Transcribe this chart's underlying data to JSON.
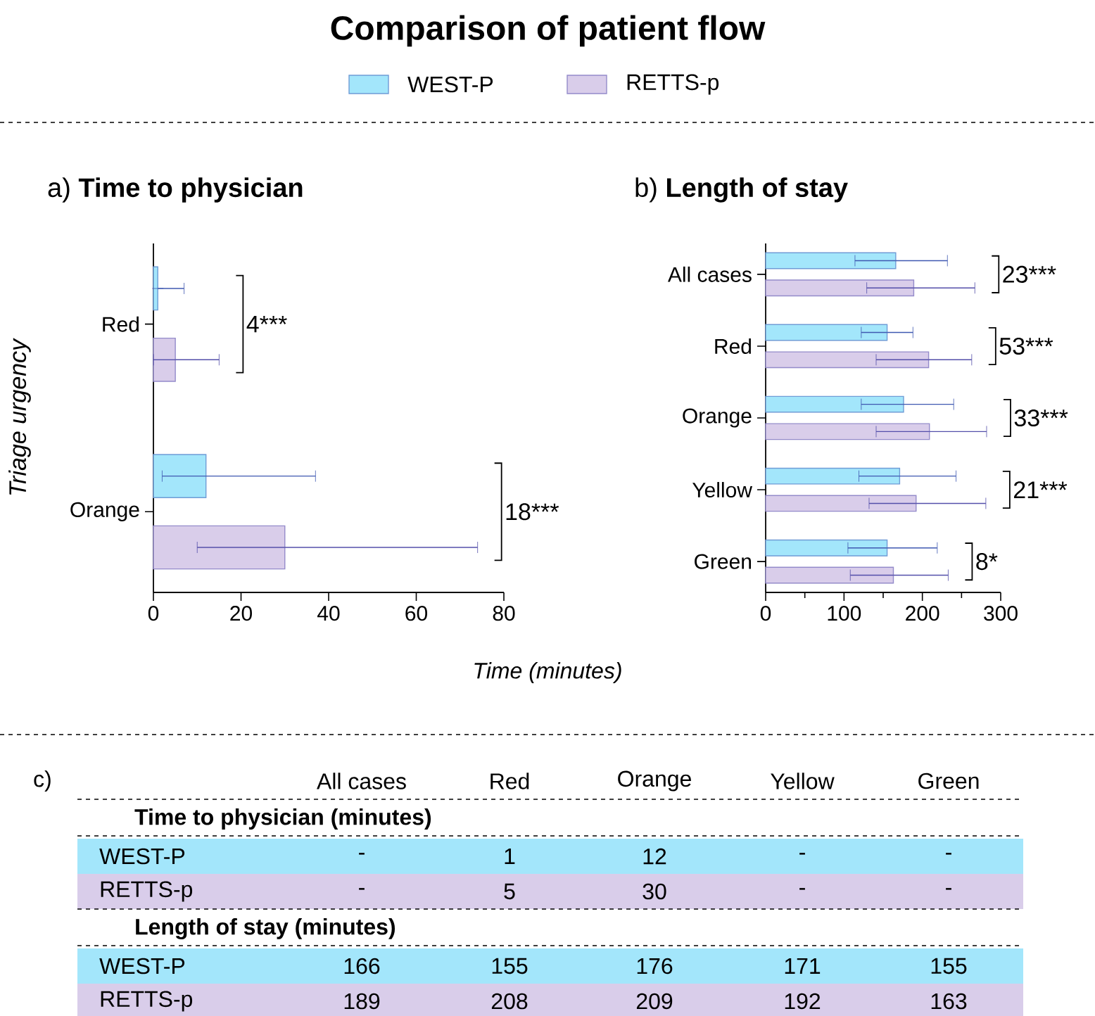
{
  "chart_data": [
    {
      "type": "other",
      "title": "Comparison of patient flow",
      "annotations": [
        "c)",
        "Time to physician (minutes)",
        "Length of stay (minutes)",
        "-",
        "1",
        "12",
        "-",
        "-",
        "-",
        "5",
        "30",
        "-",
        "-",
        "166",
        "155",
        "176",
        "171",
        "155",
        "189",
        "208",
        "209",
        "192",
        "163"
      ]
    },
    {
      "type": "bar",
      "orientation": "horizontal",
      "title": "a)  **Time to physician**",
      "ylabel": "Triage urgency",
      "xlabel": "Time (minutes)",
      "categories": [
        "Red",
        "Orange"
      ],
      "series": [
        {
          "name": "WEST-P",
          "color": "#a3e6fb",
          "values": [
            1,
            12
          ],
          "errors": [
            [
              1,
              7
            ],
            [
              2,
              37
            ]
          ]
        },
        {
          "name": "RETTS-p",
          "color": "#d9cdea",
          "values": [
            5,
            30
          ],
          "errors": [
            [
              0,
              15
            ],
            [
              10,
              74
            ]
          ]
        }
      ],
      "xlim": [
        0,
        80
      ],
      "xticks": [
        0,
        20,
        40,
        60,
        80
      ],
      "legend": "top",
      "annotations": [
        "4***",
        "18***"
      ]
    },
    {
      "type": "bar",
      "orientation": "horizontal",
      "title": "b)  **Length of stay**",
      "categories": [
        "All cases",
        "Red",
        "Orange",
        "Yellow",
        "Green"
      ],
      "series": [
        {
          "name": "WEST-P",
          "color": "#a3e6fb",
          "values": [
            166,
            155,
            176,
            171,
            155
          ],
          "errors": [
            [
              114,
              232
            ],
            [
              122,
              188
            ],
            [
              122,
              240
            ],
            [
              119,
              243
            ],
            [
              105,
              219
            ]
          ]
        },
        {
          "name": "RETTS-p",
          "color": "#d9cdea",
          "values": [
            189,
            208,
            209,
            192,
            163
          ],
          "errors": [
            [
              129,
              267
            ],
            [
              141,
              263
            ],
            [
              141,
              282
            ],
            [
              132,
              281
            ],
            [
              108,
              233
            ]
          ]
        }
      ],
      "xlim": [
        0,
        300
      ],
      "xticks": [
        0,
        100,
        200,
        300
      ],
      "annotations": [
        "23***",
        "53***",
        "33***",
        "21***",
        "8*"
      ]
    }
  ]
}
